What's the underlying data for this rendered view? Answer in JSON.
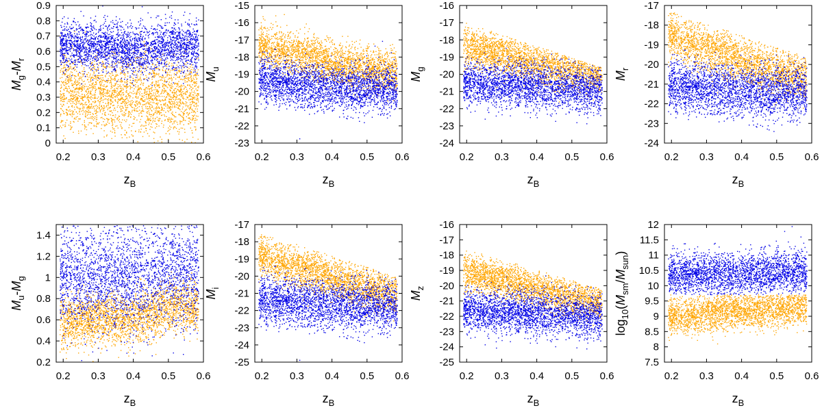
{
  "colors": {
    "blue": "#0000e6",
    "orange": "#ffa500"
  },
  "chart_data": [
    {
      "type": "scatter",
      "xlabel": {
        "base": "z",
        "sub": "B"
      },
      "ylabel": [
        {
          "t": "M",
          "i": true
        },
        {
          "t": "g",
          "sub": true
        },
        {
          "t": "-"
        },
        {
          "t": "M",
          "i": true
        },
        {
          "t": "r",
          "sub": true
        }
      ],
      "xlim": [
        0.18,
        0.6
      ],
      "ylim": [
        0,
        0.9
      ],
      "xticks": [
        "0.2",
        "0.3",
        "0.4",
        "0.5",
        "0.6"
      ],
      "yticks": [
        "0",
        "0.1",
        "0.2",
        "0.3",
        "0.4",
        "0.5",
        "0.6",
        "0.7",
        "0.8",
        "0.9"
      ],
      "series": [
        {
          "color": "orange",
          "trend": [
            [
              0.2,
              0.35
            ],
            [
              0.3,
              0.3
            ],
            [
              0.4,
              0.32
            ],
            [
              0.5,
              0.3
            ],
            [
              0.6,
              0.3
            ]
          ],
          "spread": 0.13,
          "clip_top": null
        },
        {
          "color": "blue",
          "trend": [
            [
              0.2,
              0.64
            ],
            [
              0.3,
              0.64
            ],
            [
              0.4,
              0.6
            ],
            [
              0.5,
              0.64
            ],
            [
              0.6,
              0.64
            ]
          ],
          "spread": 0.08,
          "clip_top": null
        }
      ]
    },
    {
      "type": "scatter",
      "xlabel": {
        "base": "z",
        "sub": "B"
      },
      "ylabel": [
        {
          "t": "M",
          "i": true
        },
        {
          "t": "u",
          "sub": true
        }
      ],
      "xlim": [
        0.18,
        0.6
      ],
      "ylim": [
        -23,
        -15
      ],
      "xticks": [
        "0.2",
        "0.3",
        "0.4",
        "0.5",
        "0.6"
      ],
      "yticks": [
        "-23",
        "-22",
        "-21",
        "-20",
        "-19",
        "-18",
        "-17",
        "-16",
        "-15"
      ],
      "series": [
        {
          "color": "orange",
          "trend": [
            [
              0.2,
              -17.4
            ],
            [
              0.3,
              -17.8
            ],
            [
              0.4,
              -18.4
            ],
            [
              0.5,
              -18.6
            ],
            [
              0.6,
              -18.9
            ]
          ],
          "spread": 0.6,
          "clip_top": null
        },
        {
          "color": "blue",
          "trend": [
            [
              0.2,
              -19.3
            ],
            [
              0.3,
              -19.6
            ],
            [
              0.4,
              -19.7
            ],
            [
              0.5,
              -19.8
            ],
            [
              0.6,
              -19.9
            ]
          ],
          "spread": 0.65,
          "clip_top": null
        }
      ]
    },
    {
      "type": "scatter",
      "xlabel": {
        "base": "z",
        "sub": "B"
      },
      "ylabel": [
        {
          "t": "M",
          "i": true
        },
        {
          "t": "g",
          "sub": true
        }
      ],
      "xlim": [
        0.18,
        0.6
      ],
      "ylim": [
        -24,
        -16
      ],
      "xticks": [
        "0.2",
        "0.3",
        "0.4",
        "0.5",
        "0.6"
      ],
      "yticks": [
        "-24",
        "-23",
        "-22",
        "-21",
        "-20",
        "-19",
        "-18",
        "-17",
        "-16"
      ],
      "series": [
        {
          "color": "orange",
          "trend": [
            [
              0.2,
              -18.3
            ],
            [
              0.3,
              -18.8
            ],
            [
              0.4,
              -19.4
            ],
            [
              0.5,
              -19.7
            ],
            [
              0.6,
              -20.0
            ]
          ],
          "spread": 0.6,
          "clip_top": [
            [
              0.2,
              -17.0
            ],
            [
              0.6,
              -19.7
            ]
          ]
        },
        {
          "color": "blue",
          "trend": [
            [
              0.2,
              -20.5
            ],
            [
              0.3,
              -20.6
            ],
            [
              0.4,
              -20.7
            ],
            [
              0.5,
              -20.8
            ],
            [
              0.6,
              -20.9
            ]
          ],
          "spread": 0.65,
          "clip_top": [
            [
              0.2,
              -17.0
            ],
            [
              0.6,
              -19.7
            ]
          ]
        }
      ]
    },
    {
      "type": "scatter",
      "xlabel": {
        "base": "z",
        "sub": "B"
      },
      "ylabel": [
        {
          "t": "M",
          "i": true
        },
        {
          "t": "r",
          "sub": true
        }
      ],
      "xlim": [
        0.18,
        0.6
      ],
      "ylim": [
        -24,
        -17
      ],
      "xticks": [
        "0.2",
        "0.3",
        "0.4",
        "0.5",
        "0.6"
      ],
      "yticks": [
        "-24",
        "-23",
        "-22",
        "-21",
        "-20",
        "-19",
        "-18",
        "-17"
      ],
      "series": [
        {
          "color": "orange",
          "trend": [
            [
              0.2,
              -18.5
            ],
            [
              0.3,
              -19.2
            ],
            [
              0.4,
              -19.8
            ],
            [
              0.5,
              -20.3
            ],
            [
              0.6,
              -20.6
            ]
          ],
          "spread": 0.6,
          "clip_top": [
            [
              0.2,
              -17.3
            ],
            [
              0.6,
              -19.7
            ]
          ]
        },
        {
          "color": "blue",
          "trend": [
            [
              0.2,
              -21.1
            ],
            [
              0.3,
              -21.2
            ],
            [
              0.4,
              -21.3
            ],
            [
              0.5,
              -21.4
            ],
            [
              0.6,
              -21.4
            ]
          ],
          "spread": 0.65,
          "clip_top": [
            [
              0.2,
              -17.3
            ],
            [
              0.6,
              -19.7
            ]
          ]
        }
      ]
    },
    {
      "type": "scatter",
      "xlabel": {
        "base": "z",
        "sub": "B"
      },
      "ylabel": [
        {
          "t": "M",
          "i": true
        },
        {
          "t": "u",
          "sub": true
        },
        {
          "t": "-"
        },
        {
          "t": "M",
          "i": true
        },
        {
          "t": "g",
          "sub": true
        }
      ],
      "xlim": [
        0.18,
        0.6
      ],
      "ylim": [
        0.2,
        1.5
      ],
      "xticks": [
        "0.2",
        "0.3",
        "0.4",
        "0.5",
        "0.6"
      ],
      "yticks": [
        "0.2",
        "0.4",
        "0.6",
        "0.8",
        "1",
        "1.2",
        "1.4"
      ],
      "series": [
        {
          "color": "orange",
          "trend": [
            [
              0.2,
              0.6
            ],
            [
              0.3,
              0.62
            ],
            [
              0.4,
              0.6
            ],
            [
              0.5,
              0.72
            ],
            [
              0.6,
              0.72
            ]
          ],
          "spread": 0.12,
          "clip_top": null
        },
        {
          "color": "blue",
          "trend": [
            [
              0.2,
              1.0
            ],
            [
              0.3,
              1.0
            ],
            [
              0.4,
              0.98
            ],
            [
              0.5,
              1.05
            ],
            [
              0.6,
              1.05
            ]
          ],
          "spread": 0.25,
          "clip_top": null
        }
      ]
    },
    {
      "type": "scatter",
      "xlabel": {
        "base": "z",
        "sub": "B"
      },
      "ylabel": [
        {
          "t": "M",
          "i": true
        },
        {
          "t": "i",
          "sub": true
        }
      ],
      "xlim": [
        0.18,
        0.6
      ],
      "ylim": [
        -25,
        -17
      ],
      "xticks": [
        "0.2",
        "0.3",
        "0.4",
        "0.5",
        "0.6"
      ],
      "yticks": [
        "-25",
        "-24",
        "-23",
        "-22",
        "-21",
        "-20",
        "-19",
        "-18",
        "-17"
      ],
      "series": [
        {
          "color": "orange",
          "trend": [
            [
              0.2,
              -18.8
            ],
            [
              0.3,
              -19.5
            ],
            [
              0.4,
              -20.1
            ],
            [
              0.5,
              -20.6
            ],
            [
              0.6,
              -21.0
            ]
          ],
          "spread": 0.6,
          "clip_top": [
            [
              0.2,
              -17.5
            ],
            [
              0.6,
              -20.1
            ]
          ]
        },
        {
          "color": "blue",
          "trend": [
            [
              0.2,
              -21.4
            ],
            [
              0.3,
              -21.5
            ],
            [
              0.4,
              -21.6
            ],
            [
              0.5,
              -21.7
            ],
            [
              0.6,
              -21.8
            ]
          ],
          "spread": 0.7,
          "clip_top": [
            [
              0.2,
              -17.5
            ],
            [
              0.6,
              -20.1
            ]
          ]
        }
      ]
    },
    {
      "type": "scatter",
      "xlabel": {
        "base": "z",
        "sub": "B"
      },
      "ylabel": [
        {
          "t": "M",
          "i": true
        },
        {
          "t": "z",
          "sub": true
        }
      ],
      "xlim": [
        0.18,
        0.6
      ],
      "ylim": [
        -25,
        -16
      ],
      "xticks": [
        "0.2",
        "0.3",
        "0.4",
        "0.5",
        "0.6"
      ],
      "yticks": [
        "-25",
        "-24",
        "-23",
        "-22",
        "-21",
        "-20",
        "-19",
        "-18",
        "-17",
        "-16"
      ],
      "series": [
        {
          "color": "orange",
          "trend": [
            [
              0.2,
              -19.0
            ],
            [
              0.3,
              -19.6
            ],
            [
              0.4,
              -20.2
            ],
            [
              0.5,
              -20.8
            ],
            [
              0.6,
              -21.1
            ]
          ],
          "spread": 0.6,
          "clip_top": [
            [
              0.2,
              -17.6
            ],
            [
              0.6,
              -20.3
            ]
          ]
        },
        {
          "color": "blue",
          "trend": [
            [
              0.2,
              -21.6
            ],
            [
              0.3,
              -21.7
            ],
            [
              0.4,
              -21.8
            ],
            [
              0.5,
              -21.9
            ],
            [
              0.6,
              -22.0
            ]
          ],
          "spread": 0.7,
          "clip_top": [
            [
              0.2,
              -17.6
            ],
            [
              0.6,
              -20.3
            ]
          ]
        }
      ]
    },
    {
      "type": "scatter",
      "xlabel": {
        "base": "z",
        "sub": "B"
      },
      "ylabel": [
        {
          "t": "log"
        },
        {
          "t": "10",
          "sub": true
        },
        {
          "t": "("
        },
        {
          "t": "M",
          "i": true
        },
        {
          "t": "sm",
          "sub": true
        },
        {
          "t": "/"
        },
        {
          "t": "M",
          "i": true
        },
        {
          "t": "sun",
          "sub": true
        },
        {
          "t": ")"
        }
      ],
      "xlim": [
        0.18,
        0.6
      ],
      "ylim": [
        7.5,
        12
      ],
      "xticks": [
        "0.2",
        "0.3",
        "0.4",
        "0.5",
        "0.6"
      ],
      "yticks": [
        "7.5",
        "8",
        "8.5",
        "9",
        "9.5",
        "10",
        "10.5",
        "11",
        "11.5",
        "12"
      ],
      "series": [
        {
          "color": "orange",
          "trend": [
            [
              0.2,
              9.0
            ],
            [
              0.3,
              9.1
            ],
            [
              0.4,
              9.2
            ],
            [
              0.5,
              9.3
            ],
            [
              0.6,
              9.4
            ]
          ],
          "spread": 0.3,
          "clip_top": [
            [
              0.2,
              9.72
            ],
            [
              0.6,
              9.72
            ]
          ]
        },
        {
          "color": "blue",
          "trend": [
            [
              0.2,
              10.35
            ],
            [
              0.3,
              10.4
            ],
            [
              0.4,
              10.4
            ],
            [
              0.5,
              10.45
            ],
            [
              0.6,
              10.45
            ]
          ],
          "spread": 0.35,
          "clip_bottom": 9.72,
          "clip_top": null
        }
      ]
    }
  ]
}
